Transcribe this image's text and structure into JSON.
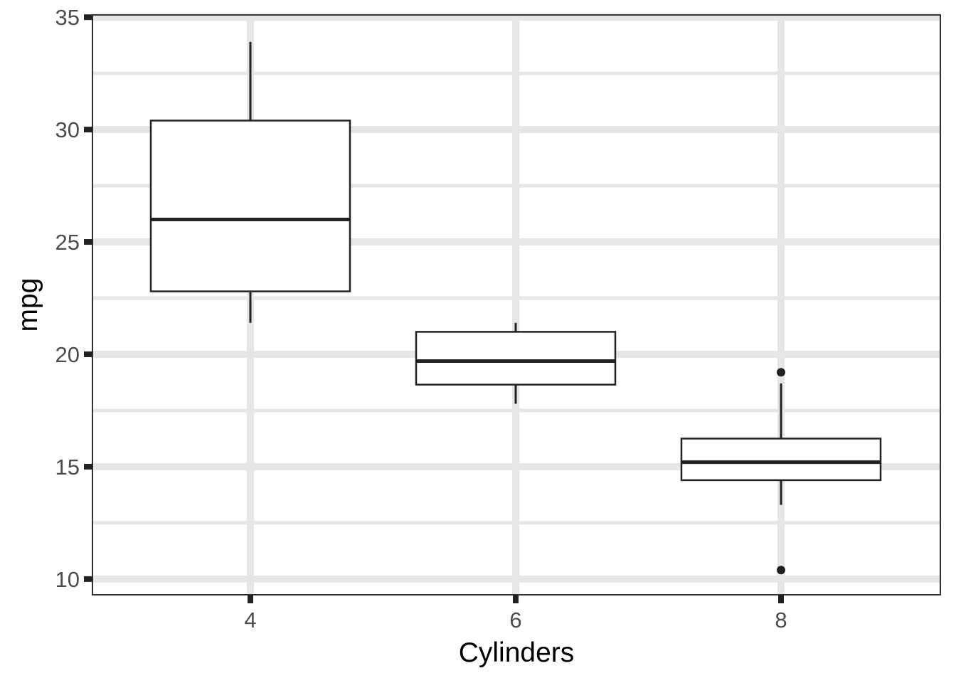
{
  "chart_data": {
    "type": "boxplot",
    "title": "",
    "xlabel": "Cylinders",
    "ylabel": "mpg",
    "categories": [
      "4",
      "6",
      "8"
    ],
    "ylim": [
      9.3,
      35.1
    ],
    "y_ticks": [
      10,
      15,
      20,
      25,
      30,
      35
    ],
    "y_tick_labels": [
      "10",
      "15",
      "20",
      "25",
      "30",
      "35"
    ],
    "y_minor_ticks": [
      12.5,
      17.5,
      22.5,
      27.5,
      32.5
    ],
    "grid": true,
    "boxes": [
      {
        "category": "4",
        "whisker_low": 21.4,
        "q1": 22.8,
        "median": 26.0,
        "q3": 30.4,
        "whisker_high": 33.9,
        "outliers": []
      },
      {
        "category": "6",
        "whisker_low": 17.8,
        "q1": 18.65,
        "median": 19.7,
        "q3": 21.0,
        "whisker_high": 21.4,
        "outliers": []
      },
      {
        "category": "8",
        "whisker_low": 13.3,
        "q1": 14.4,
        "median": 15.2,
        "q3": 16.25,
        "whisker_high": 18.7,
        "outliers": [
          19.2,
          10.4
        ]
      }
    ],
    "colors": {
      "grid": "#e6e6e6",
      "box_stroke": "#222222",
      "box_fill": "#ffffff",
      "panel_border": "#333333",
      "tick_text": "#4d4d4d",
      "axis_title": "#000000"
    }
  }
}
